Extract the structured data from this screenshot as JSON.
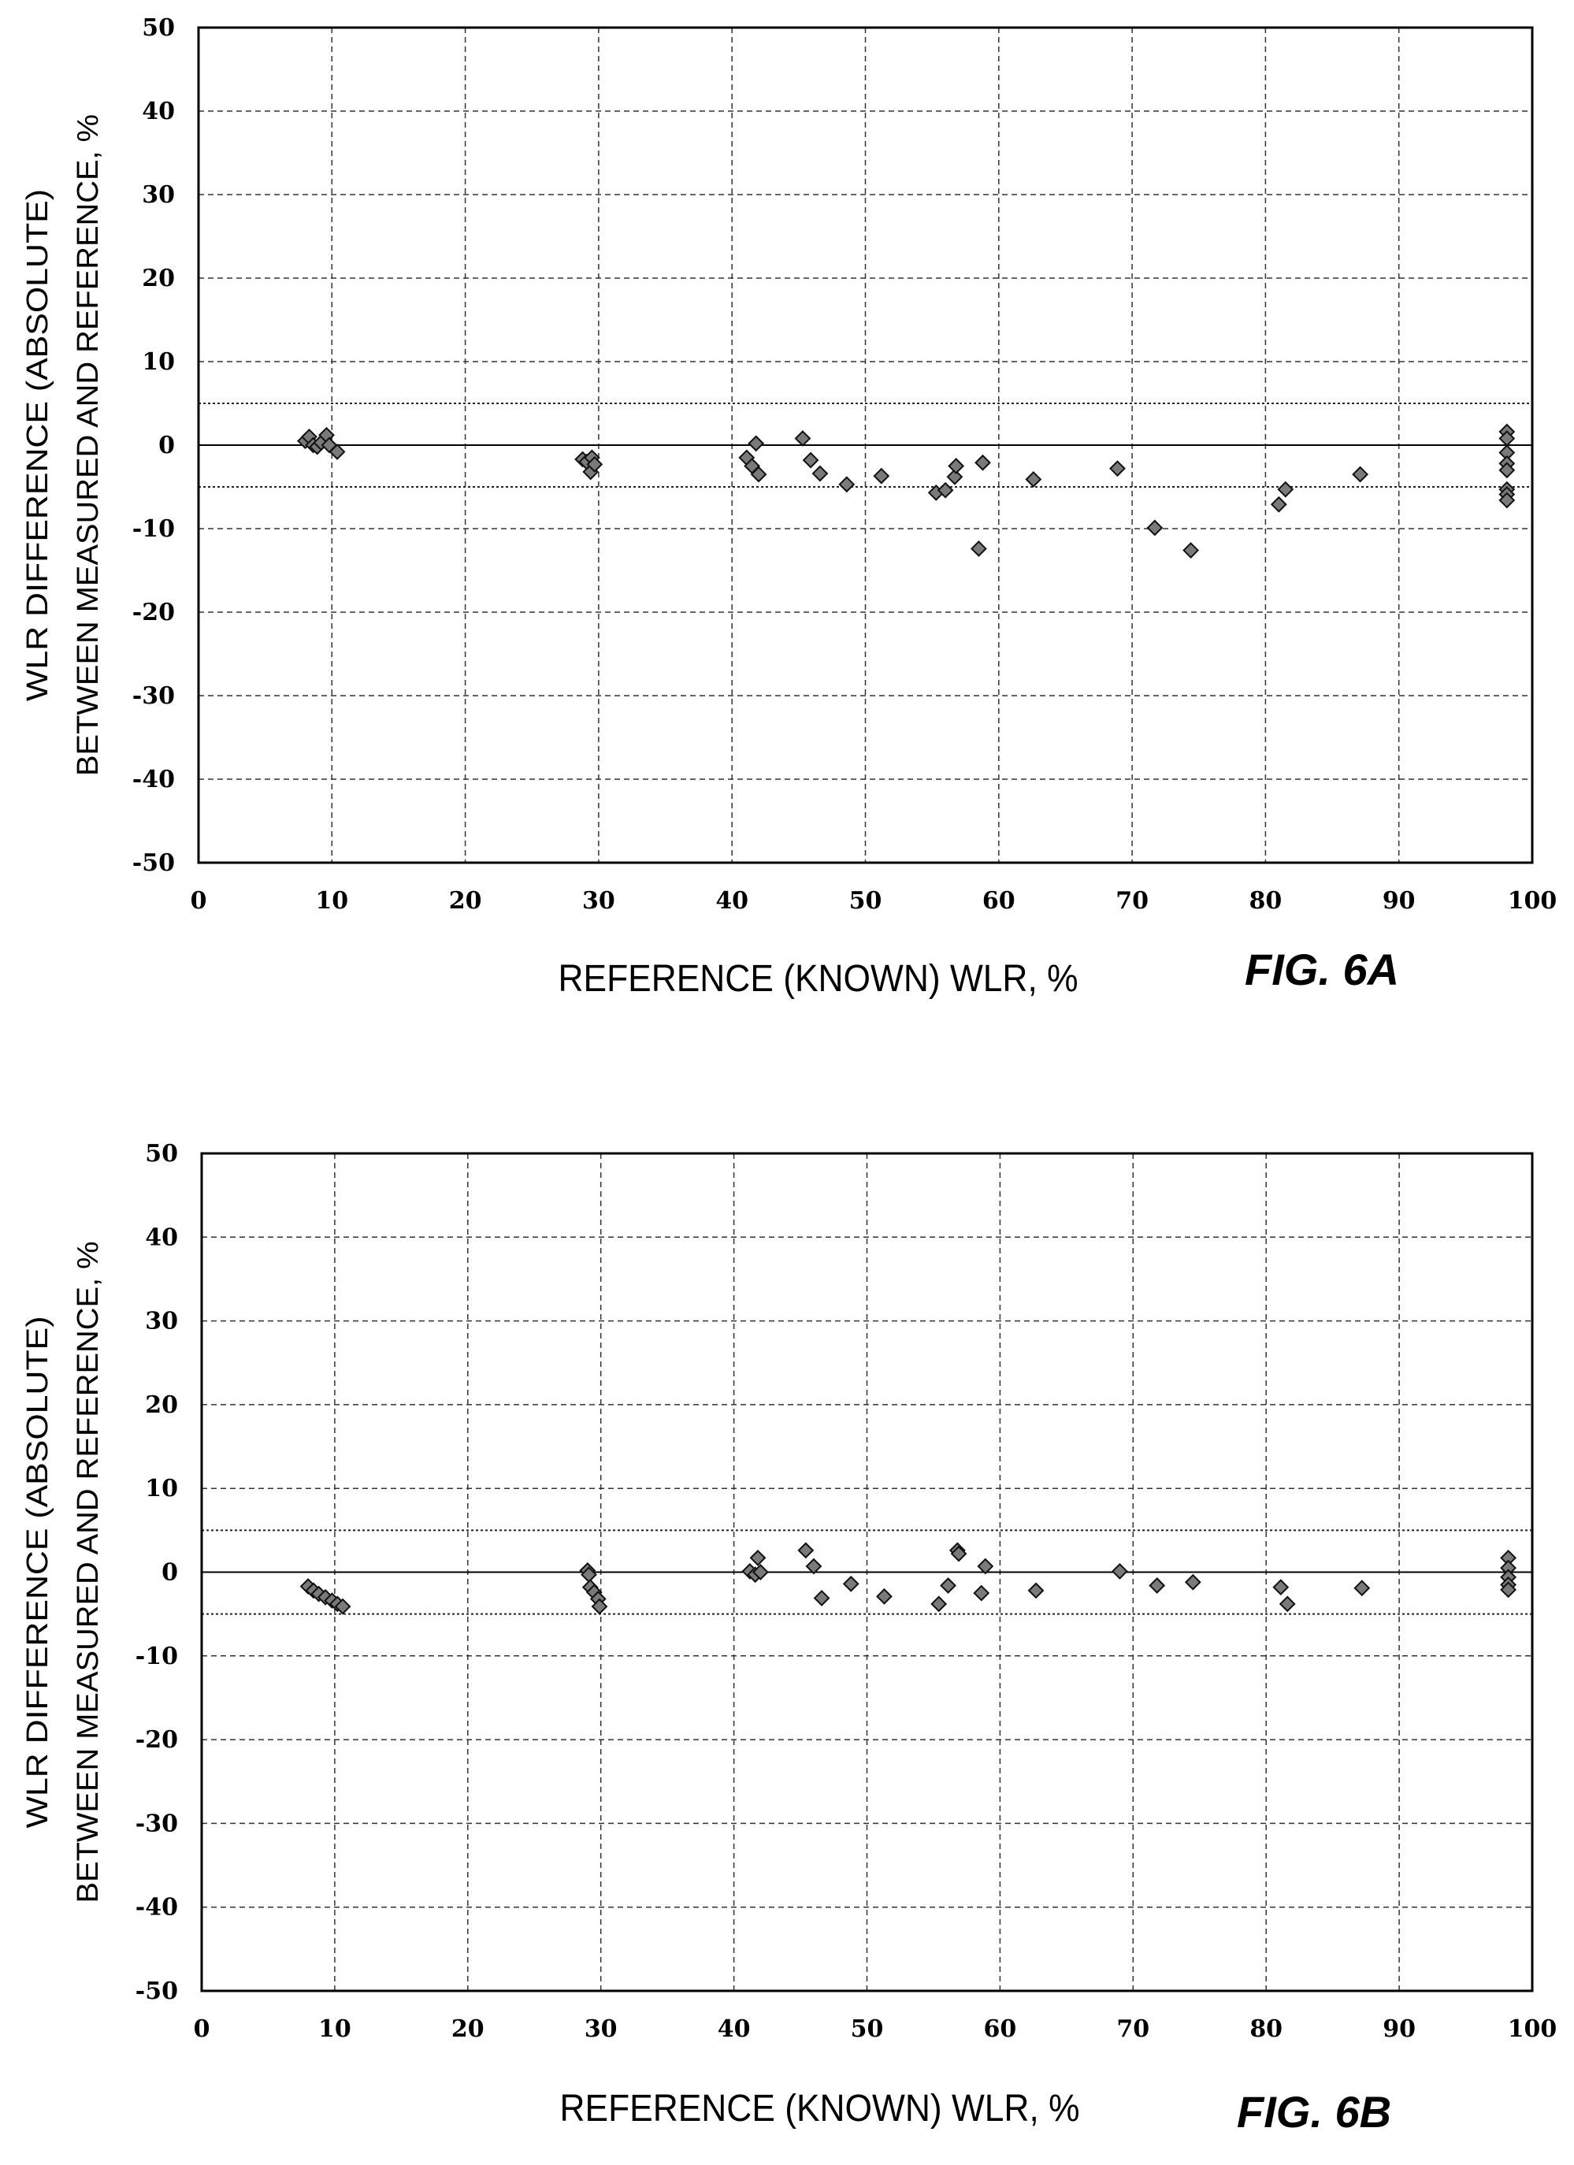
{
  "chart_data": [
    {
      "type": "scatter",
      "figure_label": "FIG. 6A",
      "xlabel": "REFERENCE (KNOWN) WLR, %",
      "ylabel_line1": "WLR DIFFERENCE (ABSOLUTE)",
      "ylabel_line2": "BETWEEN MEASURED AND REFERENCE, %",
      "xlim": [
        0,
        100
      ],
      "ylim": [
        -50,
        50
      ],
      "x_ticks": [
        "0",
        "10",
        "20",
        "30",
        "40",
        "50",
        "60",
        "70",
        "80",
        "90",
        "100"
      ],
      "y_ticks": [
        "50",
        "40",
        "30",
        "20",
        "10",
        "0",
        "-10",
        "-20",
        "-30",
        "-40",
        "-50"
      ],
      "grid": true,
      "limit_lines": [
        5,
        -5
      ],
      "points": [
        [
          8.0,
          0.5
        ],
        [
          8.3,
          1.0
        ],
        [
          8.6,
          0.0
        ],
        [
          8.9,
          -0.2
        ],
        [
          9.2,
          0.3
        ],
        [
          9.6,
          1.2
        ],
        [
          9.8,
          0.0
        ],
        [
          10.4,
          -0.8
        ],
        [
          28.8,
          -1.7
        ],
        [
          29.1,
          -2.0
        ],
        [
          29.4,
          -3.2
        ],
        [
          29.5,
          -1.5
        ],
        [
          29.7,
          -2.3
        ],
        [
          41.1,
          -1.5
        ],
        [
          41.5,
          -2.5
        ],
        [
          41.8,
          0.2
        ],
        [
          42.0,
          -3.5
        ],
        [
          45.3,
          0.8
        ],
        [
          45.9,
          -1.8
        ],
        [
          46.6,
          -3.4
        ],
        [
          48.6,
          -4.7
        ],
        [
          51.2,
          -3.7
        ],
        [
          55.3,
          -5.7
        ],
        [
          56.0,
          -5.4
        ],
        [
          56.7,
          -3.8
        ],
        [
          56.8,
          -2.5
        ],
        [
          58.5,
          -12.4
        ],
        [
          58.8,
          -2.1
        ],
        [
          62.6,
          -4.1
        ],
        [
          68.9,
          -2.8
        ],
        [
          71.7,
          -9.9
        ],
        [
          74.4,
          -12.6
        ],
        [
          81.0,
          -7.1
        ],
        [
          81.5,
          -5.3
        ],
        [
          87.1,
          -3.5
        ],
        [
          98.1,
          1.6
        ],
        [
          98.1,
          0.8
        ],
        [
          98.1,
          -0.9
        ],
        [
          98.1,
          -2.2
        ],
        [
          98.1,
          -3.0
        ],
        [
          98.1,
          -5.3
        ],
        [
          98.1,
          -5.9
        ],
        [
          98.1,
          -6.6
        ]
      ]
    },
    {
      "type": "scatter",
      "figure_label": "FIG. 6B",
      "xlabel": "REFERENCE (KNOWN) WLR, %",
      "ylabel_line1": "WLR DIFFERENCE (ABSOLUTE)",
      "ylabel_line2": "BETWEEN MEASURED AND REFERENCE, %",
      "xlim": [
        0,
        100
      ],
      "ylim": [
        -50,
        50
      ],
      "x_ticks": [
        "0",
        "10",
        "20",
        "30",
        "40",
        "50",
        "60",
        "70",
        "80",
        "90",
        "100"
      ],
      "y_ticks": [
        "50",
        "40",
        "30",
        "20",
        "10",
        "0",
        "-10",
        "-20",
        "-30",
        "-40",
        "-50"
      ],
      "grid": true,
      "limit_lines": [
        5,
        -5
      ],
      "points": [
        [
          8.0,
          -1.7
        ],
        [
          8.4,
          -2.2
        ],
        [
          8.8,
          -2.6
        ],
        [
          9.3,
          -3.0
        ],
        [
          9.8,
          -3.4
        ],
        [
          10.2,
          -3.8
        ],
        [
          10.6,
          -4.1
        ],
        [
          29.0,
          0.2
        ],
        [
          29.1,
          -0.3
        ],
        [
          29.2,
          -1.8
        ],
        [
          29.5,
          -2.4
        ],
        [
          29.8,
          -3.2
        ],
        [
          29.9,
          -4.1
        ],
        [
          41.2,
          0.1
        ],
        [
          41.6,
          -0.3
        ],
        [
          41.8,
          1.7
        ],
        [
          42.0,
          0.0
        ],
        [
          45.4,
          2.6
        ],
        [
          46.0,
          0.7
        ],
        [
          46.6,
          -3.1
        ],
        [
          48.8,
          -1.4
        ],
        [
          51.3,
          -2.9
        ],
        [
          55.4,
          -3.8
        ],
        [
          56.1,
          -1.6
        ],
        [
          56.8,
          2.6
        ],
        [
          56.9,
          2.2
        ],
        [
          58.6,
          -2.5
        ],
        [
          58.9,
          0.7
        ],
        [
          62.7,
          -2.2
        ],
        [
          69.0,
          0.1
        ],
        [
          71.8,
          -1.6
        ],
        [
          74.5,
          -1.2
        ],
        [
          81.1,
          -1.8
        ],
        [
          81.6,
          -3.8
        ],
        [
          87.2,
          -1.9
        ],
        [
          98.2,
          1.7
        ],
        [
          98.2,
          0.5
        ],
        [
          98.2,
          -0.6
        ],
        [
          98.2,
          -1.5
        ],
        [
          98.2,
          -2.1
        ]
      ]
    }
  ]
}
